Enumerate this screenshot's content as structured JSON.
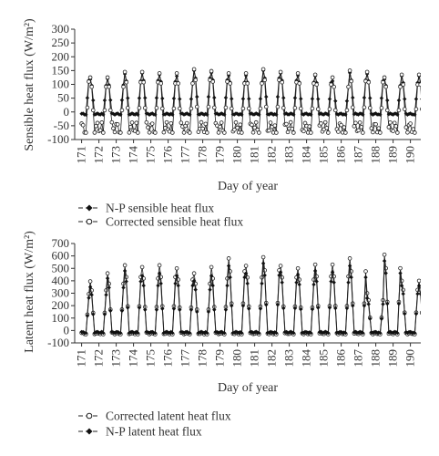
{
  "chart_data": [
    {
      "type": "line",
      "ylabel": "Sensible heat flux (W/m²)",
      "xlabel": "Day of year",
      "ylim": [
        -100,
        300
      ],
      "yticks": [
        -100,
        -50,
        0,
        50,
        100,
        150,
        200,
        250,
        300
      ],
      "xlim": [
        170.6,
        190.6
      ],
      "xticks": [
        "171",
        "172",
        "173",
        "174",
        "175",
        "176",
        "177",
        "178",
        "179",
        "180",
        "181",
        "182",
        "183",
        "184",
        "185",
        "186",
        "187",
        "188",
        "189",
        "190"
      ],
      "grid": false,
      "legend_position": "bottom-left",
      "series": [
        {
          "name": "N-P sensible heat flux",
          "marker": "filled-diamond",
          "daily_peaks": [
            140,
            118,
            120,
            138,
            140,
            135,
            130,
            150,
            142,
            132,
            132,
            150,
            140,
            132,
            130,
            112,
            142,
            138,
            118,
            130
          ],
          "night_minimum": -10
        },
        {
          "name": "Corrected sensible heat flux",
          "marker": "open-circle",
          "daily_peaks": [
            148,
            125,
            125,
            145,
            145,
            140,
            140,
            155,
            148,
            140,
            140,
            155,
            145,
            140,
            135,
            125,
            150,
            145,
            125,
            135
          ],
          "night_minimum": -75
        }
      ]
    },
    {
      "type": "line",
      "ylabel": "Latent heat flux (W/m²)",
      "xlabel": "Day of year",
      "ylim": [
        -100,
        700
      ],
      "yticks": [
        -100,
        0,
        100,
        200,
        300,
        400,
        500,
        600,
        700
      ],
      "xlim": [
        170.6,
        190.6
      ],
      "xticks": [
        "171",
        "172",
        "173",
        "174",
        "175",
        "176",
        "177",
        "178",
        "179",
        "180",
        "181",
        "182",
        "183",
        "184",
        "185",
        "186",
        "187",
        "188",
        "189",
        "190"
      ],
      "grid": false,
      "legend_position": "bottom-left",
      "series": [
        {
          "name": "Corrected latent heat flux",
          "marker": "open-circle",
          "daily_peaks": [
            360,
            395,
            460,
            525,
            510,
            525,
            500,
            460,
            510,
            580,
            520,
            590,
            520,
            500,
            530,
            530,
            580,
            300,
            610,
            400
          ],
          "night_minimum": -30
        },
        {
          "name": "N-P latent heat flux",
          "marker": "filled-diamond",
          "daily_peaks": [
            320,
            350,
            420,
            480,
            440,
            460,
            440,
            400,
            440,
            520,
            460,
            540,
            470,
            450,
            480,
            470,
            520,
            260,
            560,
            360
          ],
          "night_minimum": -20
        }
      ]
    }
  ]
}
